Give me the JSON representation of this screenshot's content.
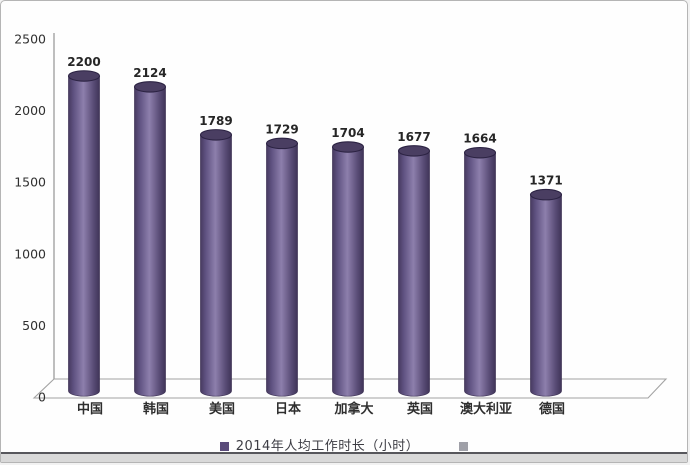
{
  "frame": {
    "background": "#fefefe",
    "border_color": "#b5b5b5",
    "bottom_line_color": "#57575c",
    "bottom_band_color": "#d9d9d9"
  },
  "chart_data": {
    "type": "bar",
    "bar_style": "cylinder-3d",
    "title": "",
    "categories": [
      "中国",
      "韩国",
      "美国",
      "日本",
      "加拿大",
      "英国",
      "澳大利亚",
      "德国"
    ],
    "series": [
      {
        "name": "2014年人均工作时长（小时）",
        "values": [
          2200,
          2124,
          1789,
          1729,
          1704,
          1677,
          1664,
          1371
        ]
      }
    ],
    "data_labels": [
      "2200",
      "2124",
      "1789",
      "1729",
      "1704",
      "1677",
      "1664",
      "1371"
    ],
    "xlabel": "",
    "ylabel": "",
    "ylim": [
      0,
      2500
    ],
    "yticks": [
      0,
      500,
      1000,
      1500,
      2000,
      2500
    ],
    "grid": false,
    "legend_position": "bottom",
    "bar_color_mid": "#8d7fac",
    "bar_color_edge": "#473a60",
    "bar_cap_color": "#4a3e62",
    "bar_cap_rim_color": "#2c2343",
    "axis_color": "#a3a3a3",
    "tick_label_color": "#303030",
    "value_label_color": "#262626",
    "category_label_color": "#2e2e2e"
  },
  "legend": {
    "primary_label": "2014年人均工作时长（小时）",
    "primary_color": "#5a4b7a",
    "secondary_color": "#9fa0a8"
  }
}
